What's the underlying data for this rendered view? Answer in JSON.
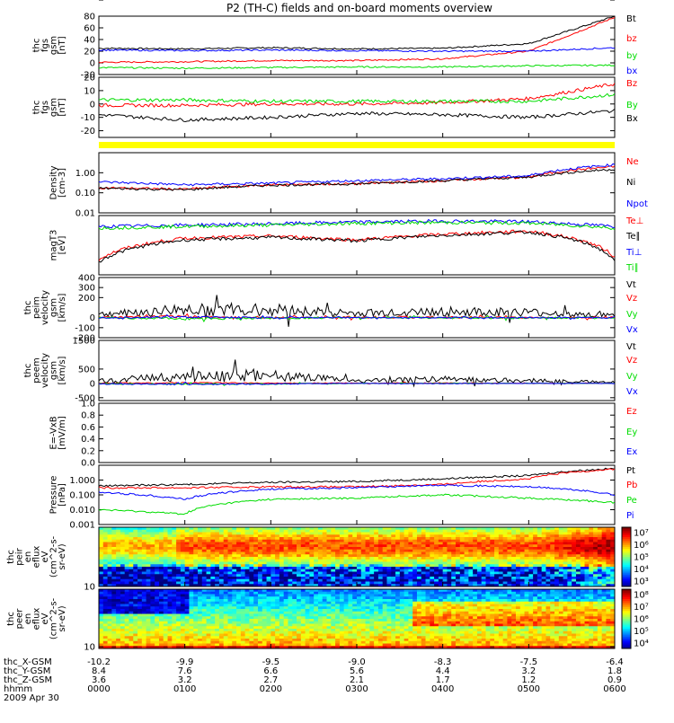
{
  "title": "P2 (TH-C) fields and on-board moments overview",
  "colors": {
    "black": "#000000",
    "red": "#ff0000",
    "blue": "#0000ff",
    "green": "#00dd00",
    "yellow": "#ffff00"
  },
  "chart_data": [
    {
      "id": "fgs-gsm",
      "type": "line",
      "ylabel": [
        "thc",
        "fgs",
        "gsm",
        "[nT]"
      ],
      "ylim": [
        -20,
        80
      ],
      "yticks": [
        "80",
        "60",
        "40",
        "20",
        "0",
        "-20"
      ],
      "x": [
        0,
        1,
        2,
        3,
        4,
        5,
        6
      ],
      "series": [
        {
          "name": "Bt",
          "color": "black",
          "values": [
            25,
            24,
            26,
            24,
            25,
            33,
            80
          ]
        },
        {
          "name": "bz",
          "color": "red",
          "values": [
            1,
            2,
            4,
            4,
            7,
            20,
            78
          ]
        },
        {
          "name": "by",
          "color": "green",
          "values": [
            -8,
            -9,
            -8,
            -7,
            -7,
            -5,
            -4
          ]
        },
        {
          "name": "bx",
          "color": "blue",
          "values": [
            22,
            21,
            22,
            21,
            20,
            20,
            26
          ]
        }
      ]
    },
    {
      "id": "fgs-gsm-2",
      "type": "line",
      "ylabel": [
        "thc",
        "fgs",
        "gsm",
        "[nT]"
      ],
      "ylim": [
        -25,
        20
      ],
      "yticks": [
        "20",
        "10",
        "0",
        "-10",
        "-20"
      ],
      "x": [
        0,
        1,
        2,
        3,
        4,
        5,
        6
      ],
      "series": [
        {
          "name": "Bz",
          "color": "red",
          "values": [
            -1,
            -1,
            0,
            0,
            1,
            4,
            15
          ]
        },
        {
          "name": "By",
          "color": "green",
          "values": [
            3,
            3,
            2,
            2,
            2,
            2,
            7
          ]
        },
        {
          "name": "Bx",
          "color": "black",
          "values": [
            -8,
            -12,
            -10,
            -7,
            -8,
            -10,
            -5
          ]
        }
      ]
    },
    {
      "id": "density",
      "type": "line",
      "yscale": "log",
      "ylabel": [
        "Density",
        "[cm-3]"
      ],
      "ylim": [
        0.01,
        10
      ],
      "yticks": [
        "1.00",
        "0.10",
        "0.01"
      ],
      "x": [
        0,
        1,
        2,
        3,
        4,
        5,
        6
      ],
      "series": [
        {
          "name": "Ne",
          "color": "red",
          "values": [
            0.18,
            0.15,
            0.25,
            0.28,
            0.4,
            0.6,
            2.0
          ]
        },
        {
          "name": "Ni",
          "color": "black",
          "values": [
            0.17,
            0.14,
            0.24,
            0.28,
            0.4,
            0.6,
            1.5
          ]
        },
        {
          "name": "Npot",
          "color": "blue",
          "values": [
            0.35,
            0.25,
            0.3,
            0.4,
            0.5,
            0.7,
            2.5
          ]
        }
      ]
    },
    {
      "id": "temperature",
      "type": "line",
      "yscale": "log",
      "ylabel": [
        "magT3",
        "[eV]"
      ],
      "ylim": [
        70,
        10000
      ],
      "yticks": [
        "10000",
        "1000",
        "100"
      ],
      "x": [
        0,
        1,
        2,
        3,
        4,
        5,
        6
      ],
      "series": [
        {
          "name": "Te⊥",
          "color": "red",
          "values": [
            250,
            1500,
            1800,
            1300,
            2100,
            2700,
            300
          ]
        },
        {
          "name": "Te∥",
          "color": "black",
          "values": [
            200,
            1300,
            1600,
            1200,
            1900,
            2500,
            200
          ]
        },
        {
          "name": "Ti⊥",
          "color": "blue",
          "values": [
            4000,
            4500,
            5000,
            5800,
            6300,
            6000,
            4000
          ]
        },
        {
          "name": "Ti∥",
          "color": "green",
          "values": [
            3500,
            4000,
            4500,
            5200,
            5600,
            5300,
            3500
          ]
        }
      ]
    },
    {
      "id": "peim-velocity",
      "type": "line",
      "ylabel": [
        "thc",
        "peim",
        "velocity",
        "gsm",
        "[km/s]"
      ],
      "ylim": [
        -200,
        400
      ],
      "yticks": [
        "400",
        "300",
        "200",
        "100",
        "0",
        "-100",
        "-200"
      ],
      "x": [
        0,
        1,
        2,
        3,
        4,
        5,
        6
      ],
      "series": [
        {
          "name": "Vt",
          "color": "black",
          "values": [
            30,
            80,
            80,
            40,
            60,
            50,
            20
          ]
        },
        {
          "name": "Vz",
          "color": "red",
          "values": [
            5,
            10,
            0,
            5,
            5,
            0,
            5
          ]
        },
        {
          "name": "Vy",
          "color": "green",
          "values": [
            0,
            -10,
            -5,
            0,
            0,
            -5,
            0
          ]
        },
        {
          "name": "Vx",
          "color": "blue",
          "values": [
            0,
            5,
            0,
            0,
            0,
            0,
            0
          ]
        }
      ]
    },
    {
      "id": "peem-velocity",
      "type": "line",
      "ylabel": [
        "thc",
        "peem",
        "velocity",
        "gsm",
        "[km/s]"
      ],
      "ylim": [
        -600,
        1500
      ],
      "yticks": [
        "1500",
        "1000",
        "500",
        "0",
        "-500"
      ],
      "x": [
        0,
        1,
        2,
        3,
        4,
        5,
        6
      ],
      "series": [
        {
          "name": "Vt",
          "color": "black",
          "values": [
            100,
            250,
            300,
            80,
            150,
            100,
            40
          ]
        },
        {
          "name": "Vz",
          "color": "red",
          "values": [
            10,
            20,
            10,
            10,
            10,
            0,
            0
          ]
        },
        {
          "name": "Vy",
          "color": "green",
          "values": [
            -10,
            -20,
            -20,
            0,
            0,
            0,
            0
          ]
        },
        {
          "name": "Vx",
          "color": "blue",
          "values": [
            -20,
            -30,
            -20,
            0,
            -10,
            0,
            0
          ]
        }
      ]
    },
    {
      "id": "e-vxb",
      "type": "line",
      "ylabel": [
        "E=-VxB",
        "[mV/m]"
      ],
      "ylim": [
        0,
        1
      ],
      "yticks": [
        "1.0",
        "0.8",
        "0.6",
        "0.4",
        "0.2",
        "0.0"
      ],
      "x": [],
      "series": [
        {
          "name": "Ez",
          "color": "red",
          "values": []
        },
        {
          "name": "Ey",
          "color": "green",
          "values": []
        },
        {
          "name": "Ex",
          "color": "blue",
          "values": []
        }
      ]
    },
    {
      "id": "pressure",
      "type": "line",
      "yscale": "log",
      "ylabel": [
        "Pressure",
        "[nPa]"
      ],
      "ylim": [
        0.001,
        10
      ],
      "yticks": [
        "10.000",
        "1.000",
        "0.100",
        "0.010",
        "0.001"
      ],
      "x": [
        0,
        1,
        2,
        3,
        4,
        5,
        6
      ],
      "series": [
        {
          "name": "Pt",
          "color": "black",
          "values": [
            0.4,
            0.5,
            0.7,
            0.8,
            1.2,
            2.0,
            6.0
          ]
        },
        {
          "name": "Pb",
          "color": "red",
          "values": [
            0.3,
            0.3,
            0.35,
            0.35,
            0.5,
            1.2,
            5.5
          ]
        },
        {
          "name": "Pe",
          "color": "green",
          "values": [
            0.01,
            0.005,
            0.05,
            0.06,
            0.1,
            0.06,
            0.03
          ]
        },
        {
          "name": "Pi",
          "color": "blue",
          "values": [
            0.15,
            0.05,
            0.25,
            0.3,
            0.45,
            0.35,
            0.1
          ]
        }
      ]
    },
    {
      "id": "peir-eflux",
      "type": "heatmap",
      "ylabel": [
        "thc",
        "peir",
        "en",
        "eflux",
        "eV",
        "(cm^2-s-",
        "sr-eV)"
      ],
      "yscale": "log",
      "ylim": [
        10,
        20000
      ],
      "yticks": [
        "10000",
        "1000",
        "100",
        "10"
      ],
      "colorbar": {
        "labels": [
          "10⁷",
          "10⁶",
          "10⁵",
          "10⁴",
          "10³"
        ],
        "range": [
          1000,
          10000000
        ],
        "scale": "log"
      }
    },
    {
      "id": "peer-eflux",
      "type": "heatmap",
      "ylabel": [
        "thc",
        "peer",
        "en",
        "eflux",
        "eV",
        "(cm^2-s-",
        "sr-eV)"
      ],
      "yscale": "log",
      "ylim": [
        8,
        20000
      ],
      "yticks": [
        "10000",
        "1000",
        "100",
        "10"
      ],
      "colorbar": {
        "labels": [
          "10⁸",
          "10⁷",
          "10⁶",
          "10⁵",
          "10⁴"
        ],
        "range": [
          10000,
          100000000
        ],
        "scale": "log"
      }
    }
  ],
  "xaxis": {
    "rows": [
      {
        "label": "thc_X-GSM",
        "values": [
          "-10.2",
          "-9.9",
          "-9.5",
          "-9.0",
          "-8.3",
          "-7.5",
          "-6.4"
        ]
      },
      {
        "label": "thc_Y-GSM",
        "values": [
          "8.4",
          "7.6",
          "6.6",
          "5.6",
          "4.4",
          "3.2",
          "1.8"
        ]
      },
      {
        "label": "thc_Z-GSM",
        "values": [
          "3.6",
          "3.2",
          "2.7",
          "2.1",
          "1.7",
          "1.2",
          "0.9"
        ]
      },
      {
        "label": "hhmm",
        "values": [
          "0000",
          "0100",
          "0200",
          "0300",
          "0400",
          "0500",
          "0600"
        ]
      }
    ],
    "date": "2009 Apr 30"
  }
}
